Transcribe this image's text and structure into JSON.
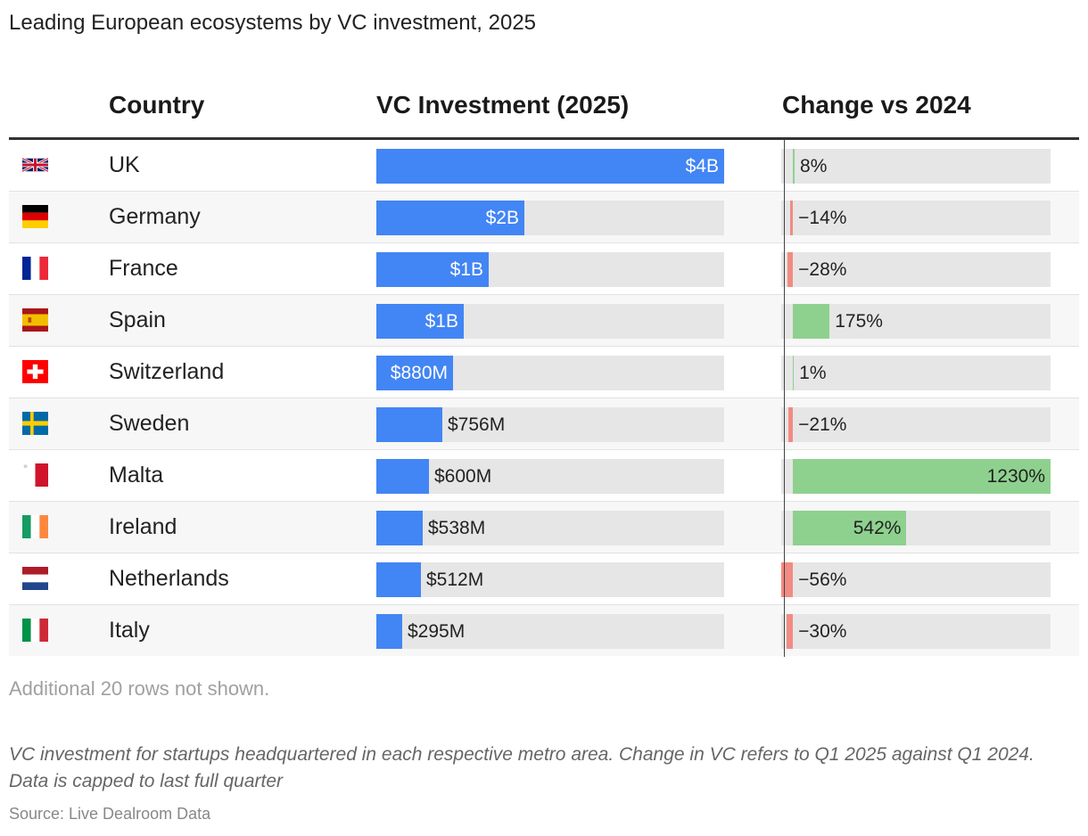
{
  "title": "Leading European ecosystems by VC investment, 2025",
  "headers": {
    "country": "Country",
    "vc": "VC Investment (2025)",
    "change": "Change vs 2024"
  },
  "chart_data": {
    "type": "table",
    "columns": [
      "Country",
      "VC Investment (2025)",
      "Change vs 2024"
    ],
    "vc_max": 4.0,
    "change_domain": [
      -56,
      1230
    ],
    "rows": [
      {
        "flag": "uk-flag-icon",
        "country": "UK",
        "vc": 4.0,
        "vc_label": "$4B",
        "change": 8,
        "change_label": "8%"
      },
      {
        "flag": "germany-flag-icon",
        "country": "Germany",
        "vc": 1.7,
        "vc_label": "$2B",
        "change": -14,
        "change_label": "−14%"
      },
      {
        "flag": "france-flag-icon",
        "country": "France",
        "vc": 1.29,
        "vc_label": "$1B",
        "change": -28,
        "change_label": "−28%"
      },
      {
        "flag": "spain-flag-icon",
        "country": "Spain",
        "vc": 1.0,
        "vc_label": "$1B",
        "change": 175,
        "change_label": "175%"
      },
      {
        "flag": "switzerland-flag-icon",
        "country": "Switzerland",
        "vc": 0.88,
        "vc_label": "$880M",
        "change": 1,
        "change_label": "1%"
      },
      {
        "flag": "sweden-flag-icon",
        "country": "Sweden",
        "vc": 0.756,
        "vc_label": "$756M",
        "change": -21,
        "change_label": "−21%"
      },
      {
        "flag": "malta-flag-icon",
        "country": "Malta",
        "vc": 0.6,
        "vc_label": "$600M",
        "change": 1230,
        "change_label": "1230%"
      },
      {
        "flag": "ireland-flag-icon",
        "country": "Ireland",
        "vc": 0.538,
        "vc_label": "$538M",
        "change": 542,
        "change_label": "542%"
      },
      {
        "flag": "netherlands-flag-icon",
        "country": "Netherlands",
        "vc": 0.512,
        "vc_label": "$512M",
        "change": -56,
        "change_label": "−56%"
      },
      {
        "flag": "italy-flag-icon",
        "country": "Italy",
        "vc": 0.295,
        "vc_label": "$295M",
        "change": -30,
        "change_label": "−30%"
      }
    ]
  },
  "colors": {
    "vc_bar": "#4285f4",
    "positive": "#8ed18e",
    "negative": "#f28b82",
    "track": "#e6e6e6"
  },
  "note": "Additional 20 rows not shown.",
  "footnote": "VC investment for startups headquartered in each respective metro area. Change in VC refers to Q1 2025 against Q1 2024. Data is capped to last full quarter",
  "source": "Source: Live Dealroom Data"
}
